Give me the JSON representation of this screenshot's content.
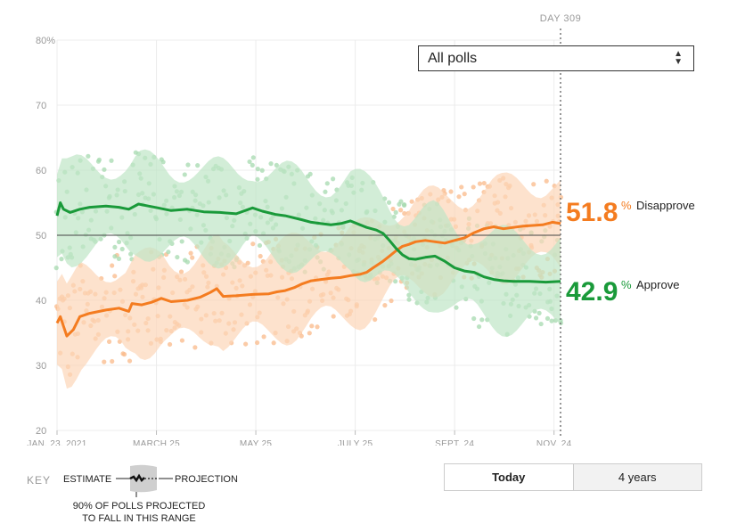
{
  "selector": {
    "value": "All polls"
  },
  "day_marker": "DAY 309",
  "key": {
    "label": "KEY",
    "estimate": "ESTIMATE",
    "projection": "PROJECTION",
    "range_line1": "90% OF POLLS PROJECTED",
    "range_line2": "TO FALL IN THIS RANGE"
  },
  "toggle": {
    "today": "Today",
    "years": "4 years"
  },
  "colors": {
    "approve": "#1a9a3a",
    "disapprove": "#f47c20",
    "approve_light": "#bfe5c6",
    "disapprove_light": "#fcd6b8"
  },
  "chart_data": {
    "type": "line",
    "title": "",
    "xlabel": "",
    "ylabel": "",
    "ylim": [
      20,
      80
    ],
    "yticks": [
      20,
      30,
      40,
      50,
      60,
      70,
      80
    ],
    "ytick_labels": [
      "20",
      "30",
      "40",
      "50",
      "60",
      "70",
      "80%"
    ],
    "xlim_days": [
      0,
      309
    ],
    "xticks": [
      {
        "day": 0,
        "label": "JAN. 23, 2021"
      },
      {
        "day": 61,
        "label": "MARCH 25"
      },
      {
        "day": 122,
        "label": "MAY 25"
      },
      {
        "day": 183,
        "label": "JULY 25"
      },
      {
        "day": 244,
        "label": "SEPT. 24"
      },
      {
        "day": 305,
        "label": "NOV. 24"
      }
    ],
    "grid": true,
    "legend": "right",
    "series": [
      {
        "name": "Disapprove",
        "latest": "51.8",
        "points": [
          [
            0,
            36.5
          ],
          [
            2,
            37.5
          ],
          [
            4,
            36
          ],
          [
            6,
            34.5
          ],
          [
            10,
            35.5
          ],
          [
            14,
            37.5
          ],
          [
            20,
            38
          ],
          [
            30,
            38.5
          ],
          [
            38,
            38.8
          ],
          [
            44,
            38.3
          ],
          [
            46,
            39.5
          ],
          [
            52,
            39.3
          ],
          [
            58,
            39.7
          ],
          [
            64,
            40.3
          ],
          [
            70,
            39.8
          ],
          [
            80,
            40
          ],
          [
            88,
            40.5
          ],
          [
            94,
            41.2
          ],
          [
            98,
            41.8
          ],
          [
            102,
            40.6
          ],
          [
            110,
            40.7
          ],
          [
            120,
            40.9
          ],
          [
            130,
            41
          ],
          [
            135,
            41.3
          ],
          [
            140,
            41.5
          ],
          [
            146,
            42
          ],
          [
            150,
            42.5
          ],
          [
            156,
            43
          ],
          [
            162,
            43.2
          ],
          [
            168,
            43.4
          ],
          [
            174,
            43.5
          ],
          [
            180,
            43.8
          ],
          [
            186,
            44
          ],
          [
            190,
            44.3
          ],
          [
            194,
            45
          ],
          [
            200,
            46
          ],
          [
            204,
            46.8
          ],
          [
            208,
            47.6
          ],
          [
            212,
            48.3
          ],
          [
            216,
            48.6
          ],
          [
            220,
            49
          ],
          [
            226,
            49.2
          ],
          [
            232,
            49
          ],
          [
            238,
            48.8
          ],
          [
            244,
            49.2
          ],
          [
            250,
            49.6
          ],
          [
            256,
            50.4
          ],
          [
            262,
            51
          ],
          [
            268,
            51.3
          ],
          [
            274,
            51
          ],
          [
            280,
            51.2
          ],
          [
            286,
            51.4
          ],
          [
            292,
            51.5
          ],
          [
            298,
            51.6
          ],
          [
            304,
            52
          ],
          [
            309,
            51.8
          ]
        ],
        "band_width": 7.5
      },
      {
        "name": "Approve",
        "latest": "42.9",
        "points": [
          [
            0,
            53
          ],
          [
            2,
            55
          ],
          [
            4,
            54
          ],
          [
            8,
            53.5
          ],
          [
            14,
            54
          ],
          [
            20,
            54.3
          ],
          [
            30,
            54.5
          ],
          [
            38,
            54.3
          ],
          [
            44,
            54
          ],
          [
            50,
            54.8
          ],
          [
            56,
            54.5
          ],
          [
            62,
            54.2
          ],
          [
            70,
            53.8
          ],
          [
            80,
            54
          ],
          [
            90,
            53.6
          ],
          [
            100,
            53.5
          ],
          [
            110,
            53.3
          ],
          [
            120,
            54.2
          ],
          [
            126,
            53.7
          ],
          [
            134,
            53.2
          ],
          [
            140,
            53
          ],
          [
            150,
            52.4
          ],
          [
            156,
            52
          ],
          [
            162,
            51.8
          ],
          [
            168,
            51.6
          ],
          [
            174,
            51.8
          ],
          [
            180,
            52.2
          ],
          [
            186,
            51.6
          ],
          [
            190,
            51.2
          ],
          [
            196,
            50.8
          ],
          [
            200,
            50.3
          ],
          [
            204,
            49.2
          ],
          [
            208,
            48
          ],
          [
            212,
            47
          ],
          [
            216,
            46.4
          ],
          [
            220,
            46.3
          ],
          [
            226,
            46.6
          ],
          [
            232,
            46.8
          ],
          [
            238,
            46
          ],
          [
            244,
            45
          ],
          [
            250,
            44.5
          ],
          [
            256,
            44.3
          ],
          [
            262,
            43.6
          ],
          [
            268,
            43.2
          ],
          [
            274,
            43
          ],
          [
            280,
            42.9
          ],
          [
            290,
            42.9
          ],
          [
            300,
            42.8
          ],
          [
            309,
            42.9
          ]
        ],
        "band_width": 7.5
      }
    ]
  }
}
